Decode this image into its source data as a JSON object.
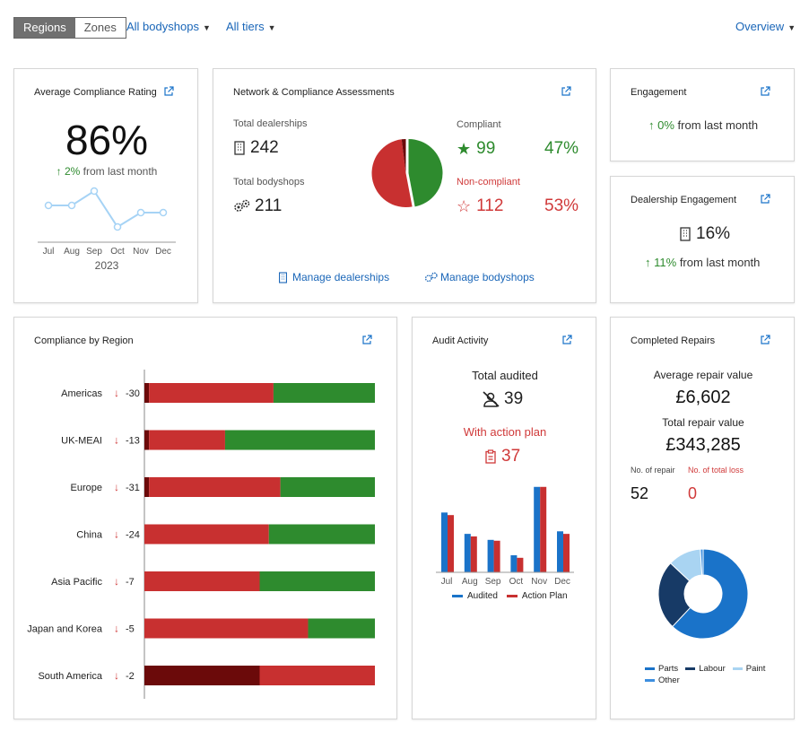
{
  "topbar": {
    "seg_regions": "Regions",
    "seg_zones": "Zones",
    "filter_bodyshops": "All bodyshops",
    "filter_tiers": "All tiers",
    "view_select": "Overview"
  },
  "avg_compliance": {
    "title": "Average Compliance Rating",
    "value": "86%",
    "change": "2%",
    "change_suffix": "from last month",
    "year": "2023",
    "months": [
      "Jul",
      "Aug",
      "Sep",
      "Oct",
      "Nov",
      "Dec"
    ],
    "trend": [
      84,
      84,
      88,
      78,
      82,
      82
    ]
  },
  "network": {
    "title": "Network & Compliance Assessments",
    "dealerships_label": "Total dealerships",
    "dealerships_value": "242",
    "bodyshops_label": "Total bodyshops",
    "bodyshops_value": "211",
    "compliant_label": "Compliant",
    "compliant_value": "99",
    "compliant_pct": "47%",
    "noncompliant_label": "Non-compliant",
    "noncompliant_value": "112",
    "noncompliant_pct": "53%",
    "manage_dealerships": "Manage dealerships",
    "manage_bodyshops": "Manage bodyshops",
    "pie": {
      "compliant": 47,
      "noncompliant": 51,
      "other": 2
    }
  },
  "engagement": {
    "title": "Engagement",
    "change": "0%",
    "change_suffix": "from last month"
  },
  "dealer_engagement": {
    "title": "Dealership Engagement",
    "value": "16%",
    "change": "11%",
    "change_suffix": "from last month"
  },
  "compliance_region": {
    "title": "Compliance by Region",
    "rows": [
      {
        "name": "Americas",
        "delta": "-30",
        "dark": 2,
        "red": 54,
        "green": 44
      },
      {
        "name": "UK-MEAI",
        "delta": "-13",
        "dark": 2,
        "red": 33,
        "green": 65
      },
      {
        "name": "Europe",
        "delta": "-31",
        "dark": 2,
        "red": 57,
        "green": 41
      },
      {
        "name": "China",
        "delta": "-24",
        "dark": 0,
        "red": 54,
        "green": 46
      },
      {
        "name": "Asia Pacific",
        "delta": "-7",
        "dark": 0,
        "red": 50,
        "green": 50
      },
      {
        "name": "Japan and Korea",
        "delta": "-5",
        "dark": 0,
        "red": 71,
        "green": 29
      },
      {
        "name": "South America",
        "delta": "-2",
        "dark": 50,
        "red": 50,
        "green": 0
      }
    ]
  },
  "audit": {
    "title": "Audit Activity",
    "total_label": "Total audited",
    "total_value": "39",
    "action_label": "With action plan",
    "action_value": "37",
    "legend_audited": "Audited",
    "legend_action": "Action Plan",
    "chart_data": {
      "type": "bar",
      "categories": [
        "Jul",
        "Aug",
        "Sep",
        "Oct",
        "Nov",
        "Dec"
      ],
      "series": [
        {
          "name": "Audited",
          "values": [
            7,
            4.5,
            3.8,
            2,
            10,
            4.8
          ]
        },
        {
          "name": "Action Plan",
          "values": [
            6.7,
            4.2,
            3.7,
            1.7,
            10,
            4.5
          ]
        }
      ],
      "ylim": [
        0,
        10.5
      ]
    }
  },
  "repairs": {
    "title": "Completed Repairs",
    "avg_label": "Average repair value",
    "avg_value": "£6,602",
    "total_label": "Total repair value",
    "total_value": "£343,285",
    "no_repair_label": "No. of repair",
    "no_repair_value": "52",
    "total_loss_label": "No. of total loss",
    "total_loss_value": "0",
    "legend": [
      "Parts",
      "Labour",
      "Paint",
      "Other"
    ],
    "donut": [
      {
        "name": "Parts",
        "value": 62,
        "color": "#1a73c9"
      },
      {
        "name": "Labour",
        "value": 25,
        "color": "#173a66"
      },
      {
        "name": "Paint",
        "value": 12,
        "color": "#a9d4f2"
      },
      {
        "name": "Other",
        "value": 1,
        "color": "#3d8fe0"
      }
    ]
  },
  "colors": {
    "green": "#2e8b2e",
    "red": "#c83030",
    "dark_red": "#6b0a0a",
    "blue": "#1a66b8",
    "light_blue": "#a9d4f2"
  }
}
